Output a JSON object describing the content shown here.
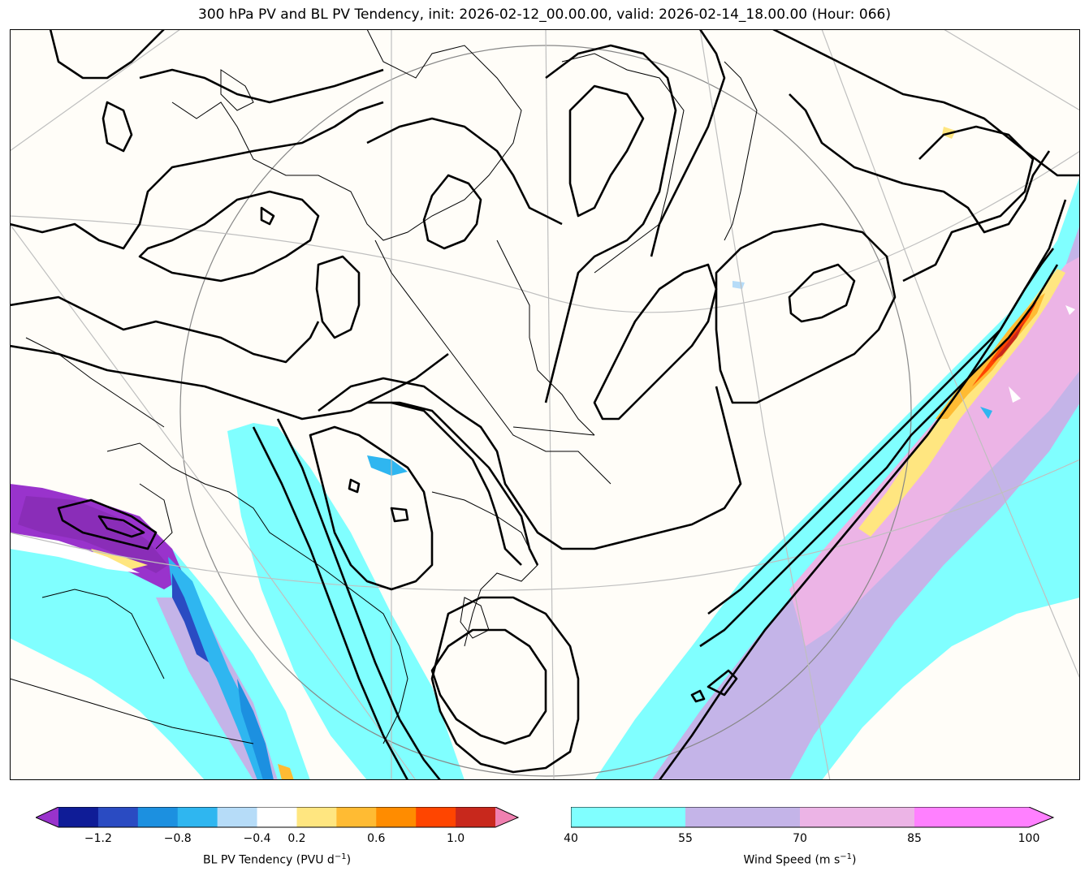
{
  "title": "300 hPa PV and BL PV Tendency, init: 2026-02-12_00.00.00, valid: 2026-02-14_18.00.00 (Hour: 066)",
  "map": {
    "background": "#fffdf8",
    "fields": [
      "300 hPa PV contours",
      "BL PV tendency shading",
      "wind speed shading"
    ]
  },
  "colorbar_pv": {
    "label_main": "BL PV Tendency (PVU d",
    "label_exp": "−1",
    "label_end": ")",
    "ticks": [
      "−1.2",
      "−0.8",
      "−0.4",
      "0.2",
      "0.6",
      "1.0"
    ],
    "colors": [
      "#0f1c97",
      "#2a4bc2",
      "#1c90e0",
      "#2fb6f0",
      "#b6dcf8",
      "#ffffff",
      "#ffe680",
      "#ffbb33",
      "#ff8c00",
      "#ff4500",
      "#c8281c"
    ],
    "under_color": "#9933cc",
    "over_color": "#f080b0"
  },
  "colorbar_wind": {
    "label_main": "Wind Speed (m s",
    "label_exp": "−1",
    "label_end": ")",
    "ticks": [
      "40",
      "55",
      "70",
      "85",
      "100"
    ],
    "colors": [
      "#80ffff",
      "#c4b4e8",
      "#ecb4e6",
      "#ff80ff"
    ]
  }
}
